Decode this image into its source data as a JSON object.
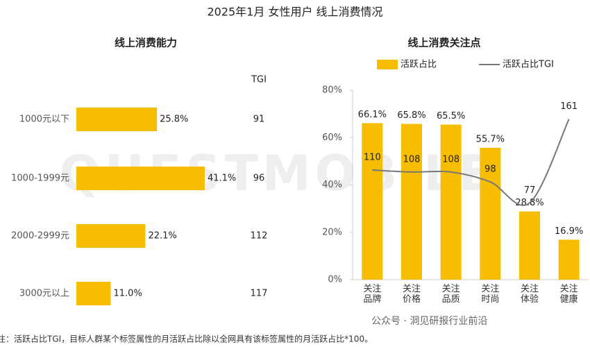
{
  "title": "2025年1月 女性用户 线上消费情况",
  "watermark": "QUESTMOBILE",
  "source": "公众号 · 洞见研报行业前沿",
  "note": "注：活跃占比TGI，目标人群某个标签属性的月活跃占比除以全网具有该标签属性的月活跃占比*100。",
  "chart_data": [
    {
      "type": "hbar",
      "title": "线上消费能力",
      "categories": [
        "1000元以下",
        "1000-1999元",
        "2000-2999元",
        "3000元以上"
      ],
      "values": [
        25.8,
        41.1,
        22.1,
        11.0
      ],
      "value_labels": [
        "25.8%",
        "41.1%",
        "22.1%",
        "11.0%"
      ],
      "color": "#f7bd00",
      "tgi": {
        "label": "TGI",
        "values": [
          91,
          96,
          112,
          117
        ],
        "colors": [
          "#222222",
          "#222222",
          "#d40000",
          "#d40000"
        ]
      }
    },
    {
      "type": "bar",
      "title": "线上消费关注点",
      "categories": [
        "关注品牌",
        "关注价格",
        "关注品质",
        "关注时尚",
        "关注体验",
        "关注健康"
      ],
      "series": [
        {
          "name": "活跃占比",
          "type": "bar",
          "color": "#f7bd00",
          "values": [
            66.1,
            65.8,
            65.5,
            55.7,
            28.8,
            16.9
          ],
          "value_labels": [
            "66.1%",
            "65.8%",
            "65.5%",
            "55.7%",
            "28.8%",
            "16.9%"
          ]
        },
        {
          "name": "活跃占比TGI",
          "type": "line",
          "axis": "y2",
          "color": "#777777",
          "values": [
            110,
            108,
            108,
            98,
            77,
            161
          ]
        }
      ],
      "ylim": [
        0,
        80
      ],
      "yticks": [
        {
          "value": 0,
          "label": "0%"
        },
        {
          "value": 20,
          "label": "20%"
        },
        {
          "value": 40,
          "label": "40%"
        },
        {
          "value": 60,
          "label": "60%"
        },
        {
          "value": 80,
          "label": "80%"
        }
      ],
      "y2lim": [
        0,
        190
      ]
    }
  ]
}
